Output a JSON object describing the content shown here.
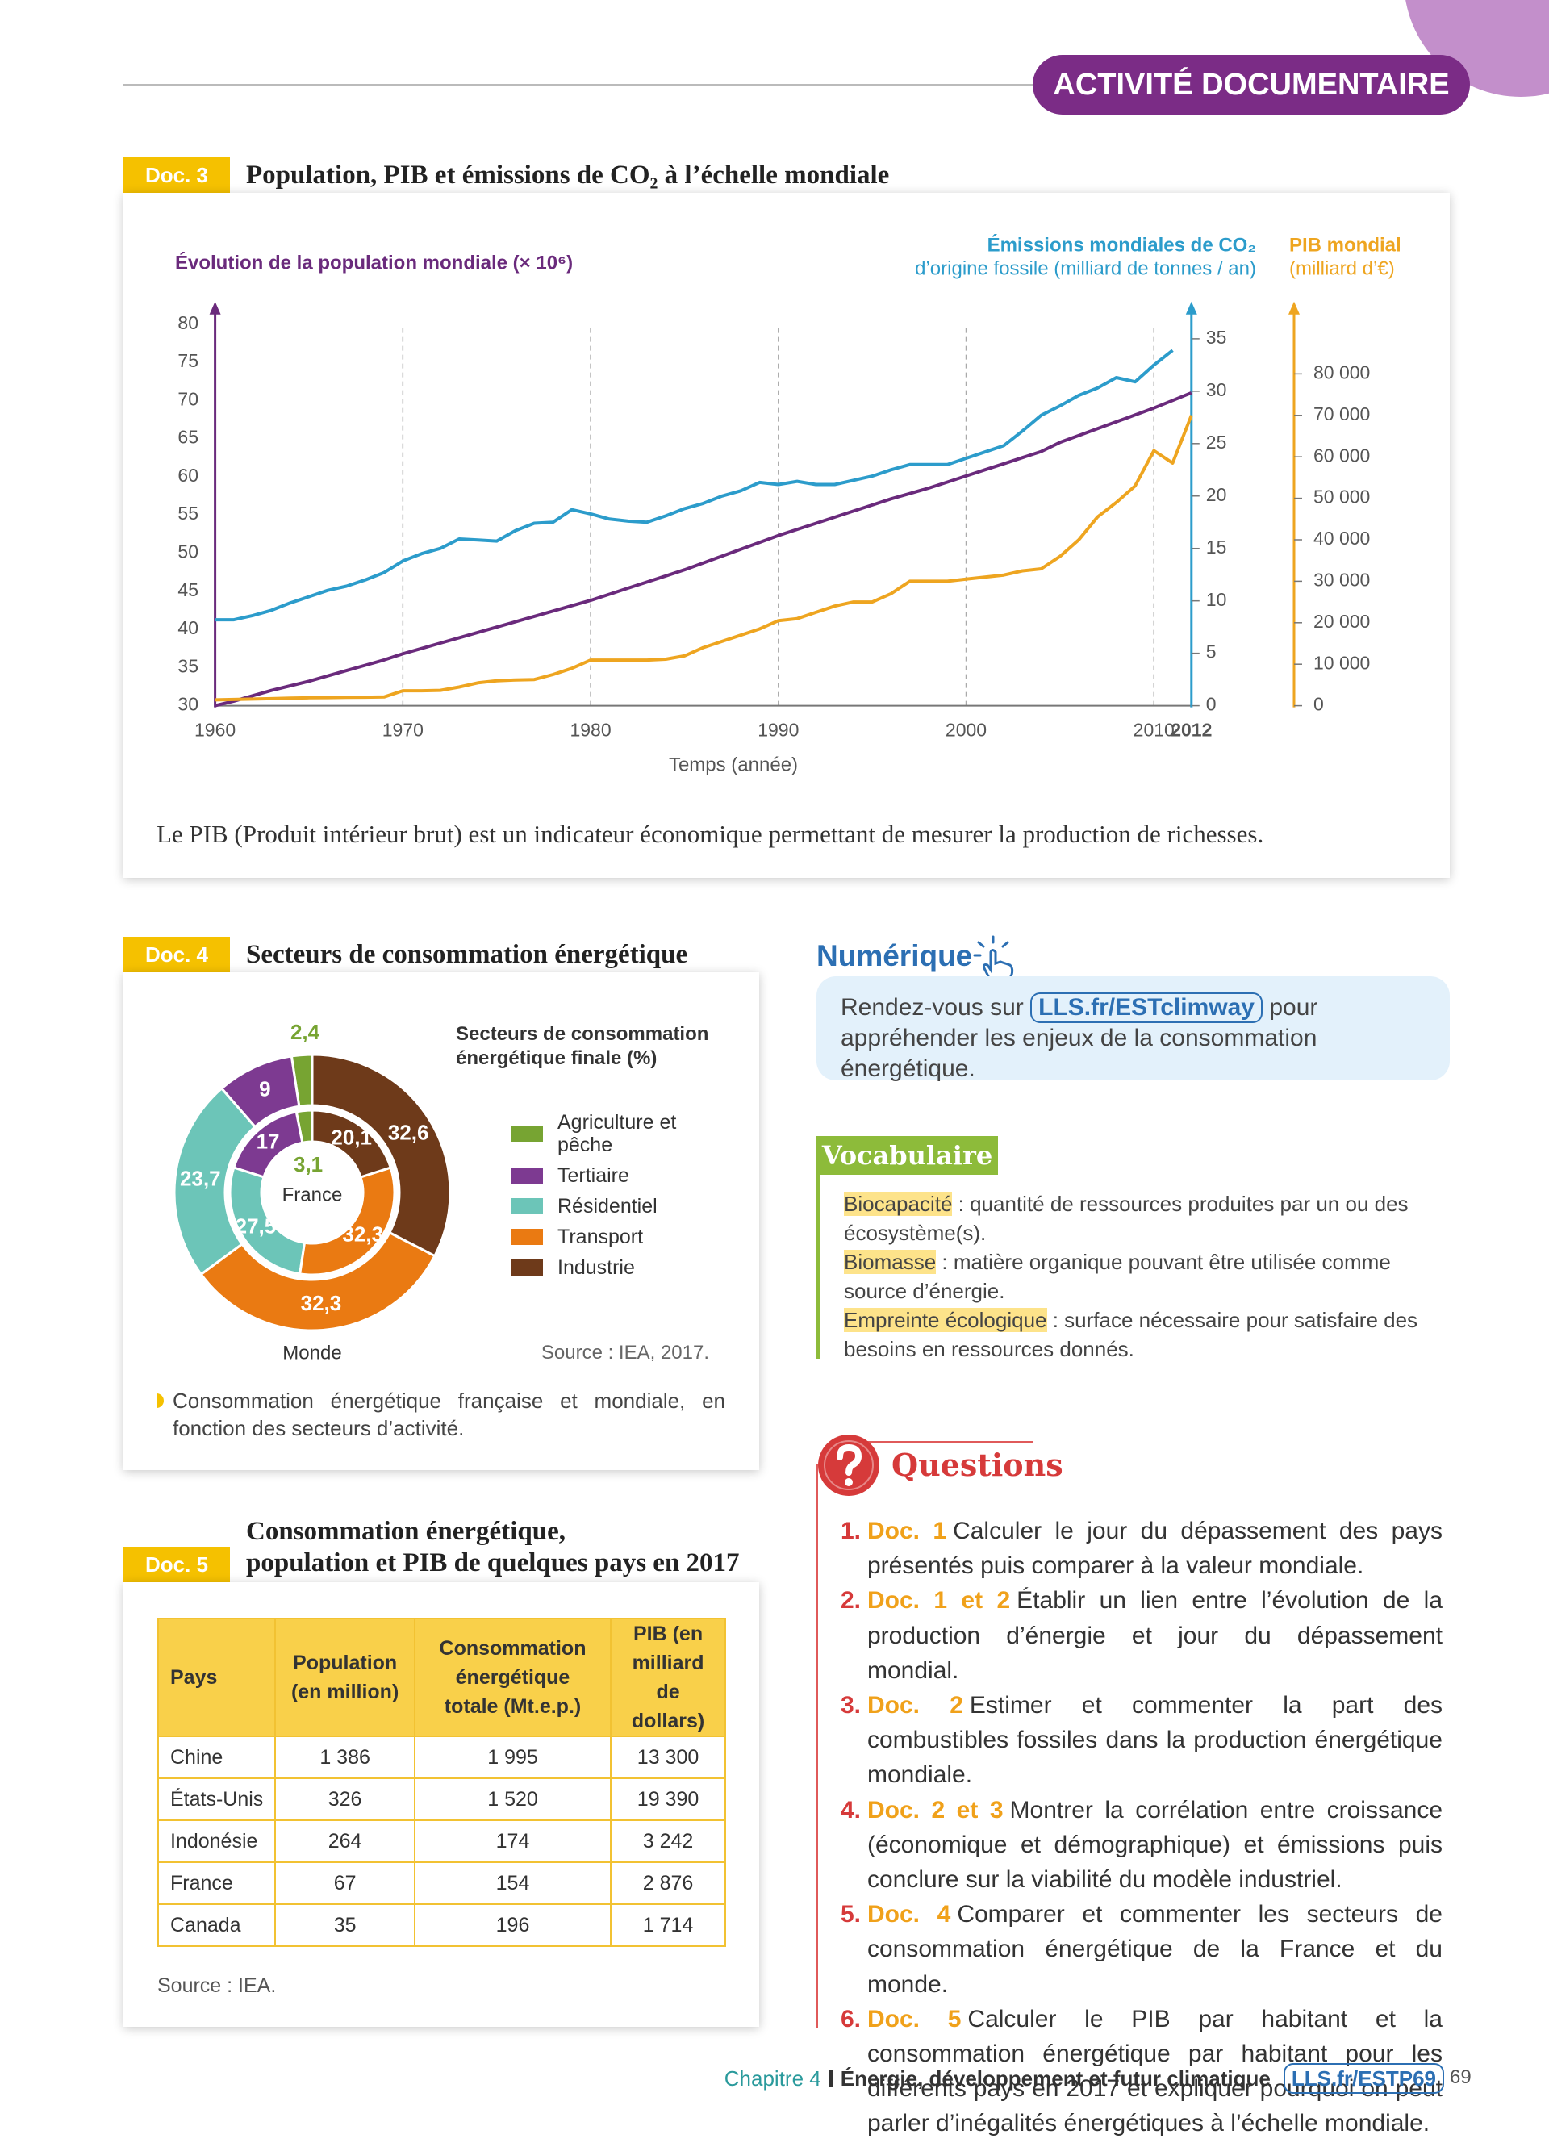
{
  "header": {
    "section": "ACTIVITÉ DOCUMENTAIRE"
  },
  "doc3": {
    "label": "Doc. 3"
  },
  "doc4": {
    "label": "Doc. 4",
    "title": "Secteurs de consommation énergétique",
    "source": "Source : IEA, 2017.",
    "caption": "Consommation énergétique française et mondiale, en fonction des secteurs d’activité."
  },
  "chart_data": [
    {
      "type": "line",
      "title": "Population, PIB et émissions de CO₂ à l’échelle mondiale",
      "ylabel": "Évolution de la population mondiale (× 10⁶)",
      "y2label": [
        "Émissions mondiales de CO₂",
        "d’origine fossile (milliard de tonnes / an)"
      ],
      "y3label": [
        "PIB mondial",
        "(milliard d’€)"
      ],
      "xlabel": "Temps (année)",
      "caption": "Le PIB (Produit intérieur brut) est un indicateur économique permettant de mesurer la production de richesses.",
      "xlim": [
        1960,
        2012
      ],
      "xticks": [
        1960,
        1970,
        1980,
        1990,
        2000,
        2010,
        2012
      ],
      "ylim": [
        30,
        80
      ],
      "yticks": [
        30,
        35,
        40,
        45,
        50,
        55,
        60,
        65,
        70,
        75,
        80
      ],
      "y2lim": [
        0,
        36.4
      ],
      "y2ticks": [
        0,
        5,
        10,
        15,
        20,
        25,
        30,
        35
      ],
      "y3lim": [
        0,
        92000
      ],
      "y3ticks": [
        0,
        {
          "value": 10000,
          "label": "10 000"
        },
        {
          "value": 20000,
          "label": "20 000"
        },
        {
          "value": 30000,
          "label": "30 000"
        },
        {
          "value": 40000,
          "label": "40 000"
        },
        {
          "value": 50000,
          "label": "50 000"
        },
        {
          "value": 60000,
          "label": "60 000"
        },
        {
          "value": 70000,
          "label": "70 000"
        },
        {
          "value": 80000,
          "label": "80 000"
        }
      ],
      "grid": true,
      "x": [
        1960,
        1961,
        1962,
        1963,
        1964,
        1965,
        1966,
        1967,
        1968,
        1969,
        1970,
        1971,
        1972,
        1973,
        1974,
        1975,
        1976,
        1977,
        1978,
        1979,
        1980,
        1981,
        1982,
        1983,
        1984,
        1985,
        1986,
        1987,
        1988,
        1989,
        1990,
        1991,
        1992,
        1993,
        1994,
        1995,
        1996,
        1997,
        1998,
        1999,
        2000,
        2001,
        2002,
        2003,
        2004,
        2005,
        2006,
        2007,
        2008,
        2009,
        2010,
        2011,
        2012
      ],
      "series": [
        {
          "color": "#6a2a7c",
          "axis": "y",
          "values": [
            30.0,
            30.6,
            31.3,
            32.0,
            32.6,
            33.2,
            33.9,
            34.6,
            35.3,
            36.0,
            36.8,
            37.5,
            38.2,
            38.9,
            39.6,
            40.3,
            41.0,
            41.7,
            42.4,
            43.1,
            43.8,
            44.6,
            45.4,
            46.2,
            47.0,
            47.8,
            48.7,
            49.6,
            50.5,
            51.4,
            52.3,
            53.1,
            53.9,
            54.7,
            55.5,
            56.3,
            57.1,
            57.8,
            58.5,
            59.3,
            60.1,
            60.9,
            61.7,
            62.5,
            63.3,
            64.5,
            65.4,
            66.3,
            67.2,
            68.1,
            69.0,
            70.0,
            71.0
          ]
        },
        {
          "color": "#2c9ccb",
          "axis": "y2",
          "values": [
            8.2,
            8.2,
            8.6,
            9.1,
            9.8,
            10.4,
            11.0,
            11.4,
            12.0,
            12.7,
            13.8,
            14.5,
            15.0,
            15.9,
            15.8,
            15.7,
            16.7,
            17.4,
            17.5,
            18.7,
            18.3,
            17.8,
            17.6,
            17.5,
            18.1,
            18.8,
            19.3,
            20.0,
            20.5,
            21.3,
            21.1,
            21.4,
            21.1,
            21.1,
            21.5,
            21.9,
            22.5,
            23.0,
            23.0,
            23.0,
            23.6,
            24.2,
            24.8,
            26.2,
            27.7,
            28.6,
            29.6,
            30.3,
            31.3,
            30.9,
            32.5,
            33.9,
            null
          ]
        },
        {
          "color": "#eea520",
          "axis": "y3",
          "values": [
            1400,
            1500,
            1600,
            1700,
            1800,
            1900,
            1950,
            2000,
            2050,
            2100,
            3600,
            3600,
            3700,
            4500,
            5500,
            6000,
            6200,
            6300,
            7500,
            9000,
            11000,
            11000,
            11000,
            11000,
            11200,
            12000,
            14000,
            15500,
            17000,
            18500,
            20500,
            21000,
            22500,
            24000,
            25000,
            25000,
            27000,
            30000,
            30000,
            30000,
            30500,
            31000,
            31500,
            32500,
            33000,
            36000,
            40000,
            45500,
            49000,
            53000,
            61500,
            58500,
            70000
          ]
        }
      ]
    },
    {
      "type": "pie",
      "legend_title": "Secteurs de consommation énergétique finale (%)",
      "categories": [
        "Agriculture et pêche",
        "Tertiaire",
        "Résidentiel",
        "Transport",
        "Industrie"
      ],
      "colors": [
        "#77a432",
        "#7d3a91",
        "#6cc5b8",
        "#ea7a12",
        "#6e3a1a"
      ],
      "direction": "counterclockwise",
      "series": [
        {
          "name": "Monde",
          "values": [
            2.4,
            9,
            23.7,
            32.3,
            32.6
          ],
          "value_labels": [
            "2,4",
            "9",
            "23,7",
            "32,3",
            "32,6"
          ]
        },
        {
          "name": "France",
          "values": [
            3.1,
            17,
            27.5,
            32.3,
            20.1
          ],
          "value_labels": [
            "3,1",
            "17",
            "27,5",
            "32,3",
            "20,1"
          ]
        }
      ]
    }
  ],
  "doc5": {
    "label": "Doc. 5",
    "title": [
      "Consommation énergétique,",
      "population et PIB de quelques pays en 2017"
    ],
    "table": {
      "header": [
        "Pays",
        "Population (en million)",
        "Consommation énergétique totale (Mt.e.p.)",
        "PIB (en milliard de dollars)"
      ],
      "rows": [
        [
          "Chine",
          "1 386",
          "1 995",
          "13 300"
        ],
        [
          "États-Unis",
          "326",
          "1 520",
          "19 390"
        ],
        [
          "Indonésie",
          "264",
          "174",
          "3 242"
        ],
        [
          "France",
          "67",
          "154",
          "2 876"
        ],
        [
          "Canada",
          "35",
          "196",
          "1 714"
        ]
      ]
    },
    "source": "Source : IEA."
  },
  "numerique": {
    "title": "Numérique",
    "before": "Rendez-vous sur",
    "link": "LLS.fr/ESTclimway",
    "after": "pour appréhender les enjeux de la consommation énergétique."
  },
  "vocabulaire": {
    "title": "Vocabulaire",
    "entries": [
      {
        "term": "Biocapacité",
        "definition": " : quantité de ressources produites par un ou des écosystème(s)."
      },
      {
        "term": "Biomasse",
        "definition": " : matière organique pouvant être utilisée comme source d’énergie."
      },
      {
        "term": "Empreinte écologique",
        "definition": " : surface nécessaire pour satisfaire des besoins en ressources donnés."
      }
    ]
  },
  "questions": {
    "title": "Questions",
    "items": [
      {
        "number": "1.",
        "ref": "Doc. 1",
        "text": "Calculer le jour du dépassement des pays présentés puis comparer à la valeur mondiale."
      },
      {
        "number": "2.",
        "ref": "Doc. 1 et 2",
        "text": "Établir un lien entre l’évolution de la production d’énergie et jour du dépassement mondial."
      },
      {
        "number": "3.",
        "ref": "Doc. 2",
        "text": "Estimer et commenter la part des combustibles fossiles dans la production énergétique mondiale."
      },
      {
        "number": "4.",
        "ref": "Doc. 2 et 3",
        "text": "Montrer la corrélation entre croissance (économique et démographique) et émissions puis conclure sur la viabilité du modèle industriel."
      },
      {
        "number": "5.",
        "ref": "Doc. 4",
        "text": "Comparer et commenter les secteurs de consommation énergétique de la France et du monde."
      },
      {
        "number": "6.",
        "ref": "Doc. 5",
        "text": "Calculer le PIB par habitant et la consommation énergétique par habitant pour les différents pays en 2017 et expliquer pourquoi on peut parler d’inégalités énergétiques à l’échelle mondiale."
      }
    ]
  },
  "footer": {
    "chapter": "Chapitre 4",
    "chapter_title": "Énergie, développement et futur climatique",
    "link": "LLS.fr/ESTP69",
    "page": "69"
  }
}
